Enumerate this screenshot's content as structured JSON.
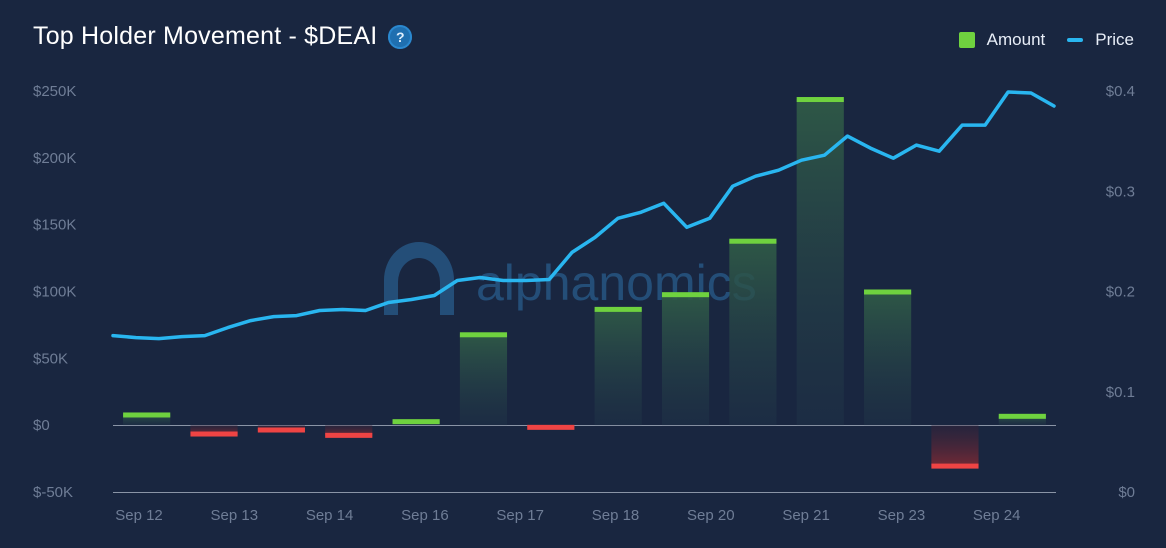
{
  "header": {
    "title": "Top Holder Movement - $DEAI",
    "help_icon": "question-mark-icon"
  },
  "legend": {
    "amount_label": "Amount",
    "price_label": "Price"
  },
  "watermark": {
    "text": "alphanomics"
  },
  "colors": {
    "background": "#192640",
    "positive_bar_cap": "#6fd23f",
    "negative_bar_cap": "#ef4444",
    "price_line": "#29b6f0",
    "axis_text": "#6f7d96"
  },
  "chart_data": {
    "type": "bar+line",
    "title": "Top Holder Movement - $DEAI",
    "x_tick_labels": [
      "Sep 12",
      "Sep 13",
      "Sep 14",
      "Sep 16",
      "Sep 17",
      "Sep 18",
      "Sep 20",
      "Sep 21",
      "Sep 23",
      "Sep 24"
    ],
    "left_axis": {
      "ylim": [
        -50000,
        250000
      ],
      "ticks": [
        -50000,
        0,
        50000,
        100000,
        150000,
        200000,
        250000
      ],
      "tick_labels": [
        "$-50K",
        "$0",
        "$50K",
        "$100K",
        "$150K",
        "$200K",
        "$250K"
      ]
    },
    "right_axis": {
      "ylim": [
        0,
        0.4
      ],
      "ticks": [
        0,
        0.1,
        0.2,
        0.3,
        0.4
      ],
      "tick_labels": [
        "$0",
        "$0.1",
        "$0.2",
        "$0.3",
        "$0.4"
      ]
    },
    "series": [
      {
        "name": "Amount",
        "type": "bar",
        "axis": "left",
        "values": [
          8000,
          -7000,
          -4000,
          -8000,
          3000,
          68000,
          -2000,
          87000,
          98000,
          138000,
          244000,
          100000,
          -31000,
          7000
        ]
      },
      {
        "name": "Price",
        "type": "line",
        "axis": "right",
        "values": [
          0.156,
          0.154,
          0.153,
          0.155,
          0.156,
          0.164,
          0.171,
          0.175,
          0.176,
          0.181,
          0.182,
          0.181,
          0.189,
          0.192,
          0.196,
          0.211,
          0.214,
          0.211,
          0.211,
          0.212,
          0.239,
          0.254,
          0.273,
          0.279,
          0.288,
          0.264,
          0.273,
          0.305,
          0.315,
          0.321,
          0.331,
          0.336,
          0.355,
          0.343,
          0.333,
          0.346,
          0.34,
          0.366,
          0.366,
          0.399,
          0.398,
          0.385
        ]
      }
    ],
    "grid": false
  }
}
